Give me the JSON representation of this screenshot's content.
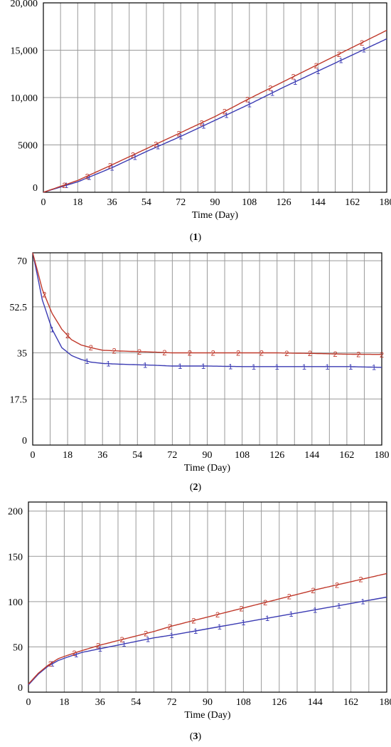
{
  "chart_data": [
    {
      "type": "line",
      "caption_number": "1",
      "xlabel": "Time (Day)",
      "xlim": [
        0,
        180
      ],
      "ylim": [
        0,
        20000
      ],
      "x_ticks": [
        "0",
        "18",
        "36",
        "54",
        "72",
        "90",
        "108",
        "126",
        "144",
        "162",
        "180"
      ],
      "y_ticks": [
        "0",
        "5000",
        "10,000",
        "15,000",
        "20,000"
      ],
      "y_tick_values": [
        0,
        5000,
        10000,
        15000,
        20000
      ],
      "x_grid_step": 9,
      "y_grid_step": 5000,
      "series": [
        {
          "marker": "1",
          "color": "#3b3bb3",
          "x": [
            0,
            18,
            36,
            54,
            72,
            90,
            108,
            126,
            144,
            162,
            180
          ],
          "values": [
            0,
            1100,
            2600,
            4300,
            5900,
            7600,
            9300,
            11100,
            12800,
            14500,
            16200
          ]
        },
        {
          "marker": "2",
          "color": "#c0392b",
          "x": [
            0,
            18,
            36,
            54,
            72,
            90,
            108,
            126,
            144,
            162,
            180
          ],
          "values": [
            0,
            1250,
            2900,
            4600,
            6300,
            8000,
            9900,
            11700,
            13500,
            15300,
            17100
          ]
        }
      ]
    },
    {
      "type": "line",
      "caption_number": "2",
      "xlabel": "Time (Day)",
      "xlim": [
        0,
        180
      ],
      "ylim": [
        0,
        73
      ],
      "x_ticks": [
        "0",
        "18",
        "36",
        "54",
        "72",
        "90",
        "108",
        "126",
        "144",
        "162",
        "180"
      ],
      "y_ticks": [
        "0",
        "17.5",
        "35",
        "52.5",
        "70"
      ],
      "y_tick_values": [
        0,
        17.5,
        35,
        52.5,
        70
      ],
      "x_grid_step": 9,
      "y_grid_step": 17.5,
      "series": [
        {
          "marker": "1",
          "color": "#3b3bb3",
          "x": [
            0,
            5,
            10,
            15,
            20,
            25,
            30,
            36,
            45,
            54,
            63,
            72,
            90,
            108,
            126,
            144,
            162,
            180
          ],
          "values": [
            73,
            55,
            44,
            37,
            34,
            32.5,
            31.5,
            31,
            30.7,
            30.5,
            30.3,
            30,
            30,
            29.8,
            29.8,
            29.8,
            29.8,
            29.5
          ],
          "marker_x": [
            10,
            28,
            39,
            58,
            76,
            88,
            102,
            114,
            126,
            140,
            152,
            164,
            176
          ]
        },
        {
          "marker": "2",
          "color": "#c0392b",
          "x": [
            0,
            5,
            10,
            15,
            20,
            25,
            30,
            36,
            45,
            54,
            63,
            72,
            90,
            108,
            126,
            144,
            162,
            180
          ],
          "values": [
            73,
            59,
            50,
            44,
            40,
            38,
            37,
            36,
            35.7,
            35.5,
            35.3,
            35,
            35,
            35,
            35,
            34.8,
            34.5,
            34.4
          ],
          "marker_x": [
            6,
            18,
            30,
            42,
            55,
            68,
            81,
            93,
            106,
            118,
            131,
            143,
            156,
            168,
            180
          ]
        }
      ]
    },
    {
      "type": "line",
      "caption_number": "3",
      "xlabel": "Time (Day)",
      "xlim": [
        0,
        180
      ],
      "ylim": [
        0,
        210
      ],
      "x_ticks": [
        "0",
        "18",
        "36",
        "54",
        "72",
        "90",
        "108",
        "126",
        "144",
        "162",
        "180"
      ],
      "y_ticks": [
        "0",
        "50",
        "100",
        "150",
        "200"
      ],
      "y_tick_values": [
        0,
        50,
        100,
        150,
        200
      ],
      "x_grid_step": 9,
      "y_grid_step": 50,
      "series": [
        {
          "marker": "1",
          "color": "#3b3bb3",
          "x": [
            0,
            5,
            10,
            15,
            20,
            27,
            36,
            45,
            54,
            63,
            72,
            90,
            108,
            126,
            144,
            162,
            180
          ],
          "values": [
            8,
            20,
            29,
            35,
            39,
            44,
            48,
            52,
            56,
            60,
            63,
            70,
            77,
            84,
            91,
            98,
            105
          ]
        },
        {
          "marker": "2",
          "color": "#c0392b",
          "x": [
            0,
            5,
            10,
            15,
            20,
            27,
            36,
            45,
            54,
            63,
            72,
            90,
            108,
            126,
            144,
            162,
            180
          ],
          "values": [
            9,
            21,
            30,
            37,
            41,
            46,
            52,
            57,
            62,
            67,
            73,
            83,
            93,
            103,
            113,
            122,
            131
          ]
        }
      ]
    }
  ]
}
